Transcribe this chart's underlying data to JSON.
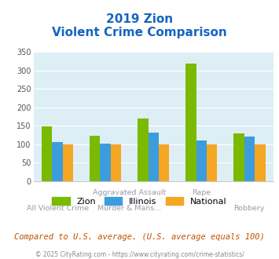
{
  "title_line1": "2019 Zion",
  "title_line2": "Violent Crime Comparison",
  "series": {
    "Zion": [
      148,
      122,
      170,
      318,
      130
    ],
    "Illinois": [
      107,
      102,
      132,
      111,
      121
    ],
    "National": [
      100,
      100,
      100,
      100,
      100
    ]
  },
  "colors": {
    "Zion": "#7aba00",
    "Illinois": "#3d9cdb",
    "National": "#f5a623"
  },
  "ylim": [
    0,
    350
  ],
  "yticks": [
    0,
    50,
    100,
    150,
    200,
    250,
    300,
    350
  ],
  "plot_bg": "#ddeef5",
  "fig_bg": "#ffffff",
  "title_color": "#1565c0",
  "note_text": "Compared to U.S. average. (U.S. average equals 100)",
  "note_color": "#c05000",
  "footer_text": "© 2025 CityRating.com - https://www.cityrating.com/crime-statistics/",
  "footer_color": "#888888",
  "label_color": "#9999aa",
  "title_fontsize": 11,
  "subtitle_fontsize": 11,
  "bar_width": 0.22,
  "xlim": [
    -0.5,
    4.5
  ],
  "n_cats": 5,
  "series_names": [
    "Zion",
    "Illinois",
    "National"
  ],
  "row1_labels": [
    {
      "x": 1.5,
      "text": "Aggravated Assault"
    },
    {
      "x": 3.0,
      "text": "Rape"
    }
  ],
  "row2_labels": [
    {
      "x": 0.0,
      "text": "All Violent Crime"
    },
    {
      "x": 1.5,
      "text": "Murder & Mans..."
    },
    {
      "x": 4.0,
      "text": "Robbery"
    }
  ]
}
